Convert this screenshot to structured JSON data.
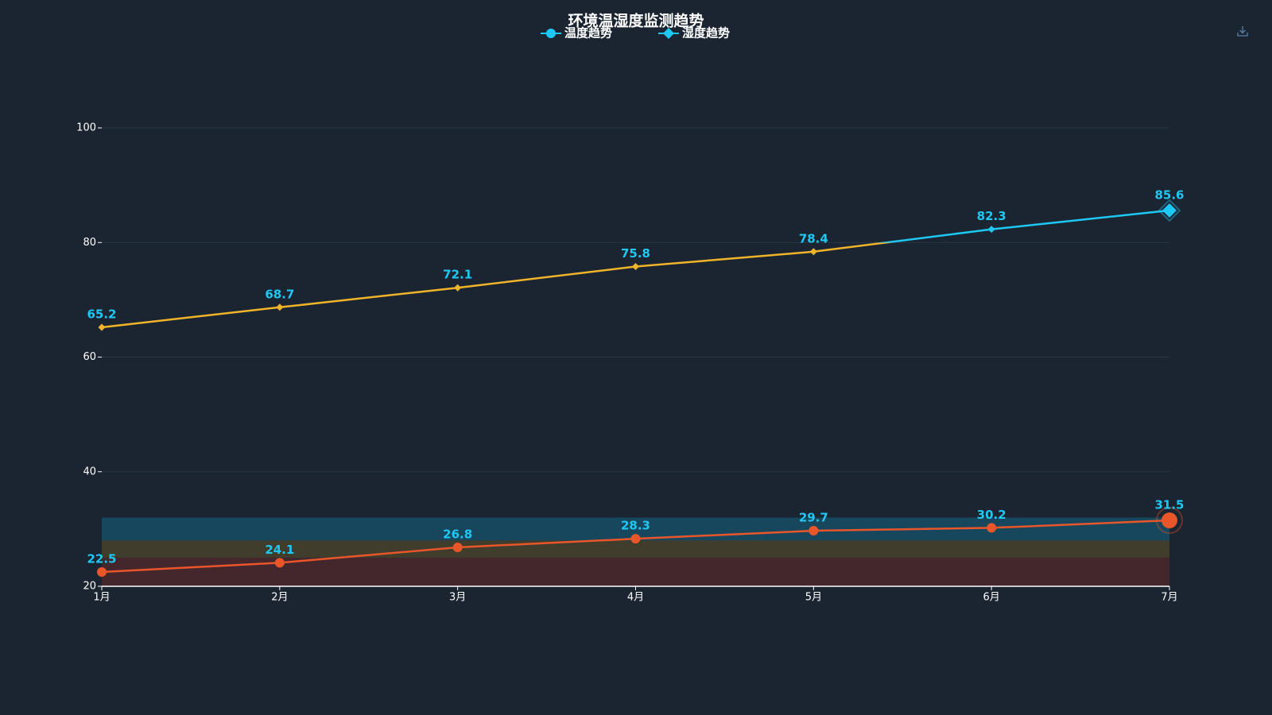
{
  "chart_data": {
    "type": "line",
    "title": "环境温湿度监测趋势",
    "categories": [
      "1月",
      "2月",
      "3月",
      "4月",
      "5月",
      "6月",
      "7月"
    ],
    "series": [
      {
        "name": "温度趋势",
        "color": "#1ec8f5",
        "line_color": "#e8562a",
        "marker": "circle",
        "values": [
          22.5,
          24.1,
          26.8,
          28.3,
          29.7,
          30.2,
          31.5
        ]
      },
      {
        "name": "湿度趋势",
        "color": "#1ec8f5",
        "line_color": "#f0b429",
        "line_color_above": "#1ec8f5",
        "color_threshold": 80,
        "marker": "diamond",
        "values": [
          65.2,
          68.7,
          72.1,
          75.8,
          78.4,
          82.3,
          85.6
        ]
      }
    ],
    "ylim": [
      20,
      100
    ],
    "yticks": [
      20,
      40,
      60,
      80,
      100
    ],
    "grid": true,
    "bands": [
      {
        "range": [
          20,
          25
        ],
        "color": "rgba(120,40,40,0.45)"
      },
      {
        "range": [
          25,
          28
        ],
        "color": "rgba(110,90,40,0.45)"
      },
      {
        "range": [
          28,
          32
        ],
        "color": "rgba(20,100,130,0.55)"
      }
    ],
    "label_color": "#1ec8f5"
  }
}
